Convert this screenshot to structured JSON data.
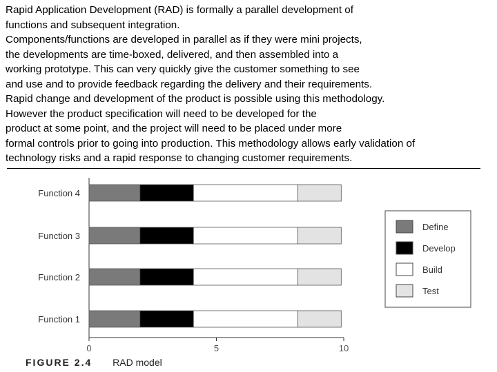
{
  "paragraph": {
    "lines": [
      "Rapid Application Development (RAD) is formally a parallel development of",
      "functions and subsequent integration.",
      "Components/functions are developed in parallel as if they were mini projects,",
      "the developments are time-boxed, delivered, and then assembled into a",
      "working prototype. This can very quickly give the customer something to see",
      "and use and to provide feedback regarding the delivery and their requirements.",
      "Rapid change and development of the product is possible using this methodology.",
      "However the product specification will need to be developed for the",
      "product at some point, and the project will need to be placed under more",
      "formal controls prior to going into production. This methodology allows early validation of",
      "technology risks and a rapid response to changing customer requirements."
    ]
  },
  "figure": {
    "number": "FIGURE 2.4",
    "title": "RAD model"
  },
  "chart_data": {
    "type": "bar",
    "orientation": "horizontal",
    "stacked": true,
    "categories": [
      "Function 4",
      "Function 3",
      "Function 2",
      "Function 1"
    ],
    "xlim": [
      0,
      10
    ],
    "xticks": [
      "0",
      "5",
      "10"
    ],
    "series": [
      {
        "name": "Define",
        "color": "#7a7a7a",
        "values": [
          2,
          2,
          2,
          2
        ]
      },
      {
        "name": "Develop",
        "color": "#000000",
        "values": [
          2.1,
          2.1,
          2.1,
          2.1
        ]
      },
      {
        "name": "Build",
        "color": "#ffffff",
        "values": [
          4.1,
          4.1,
          4.1,
          4.1
        ]
      },
      {
        "name": "Test",
        "color": "#e3e3e3",
        "values": [
          1.7,
          1.7,
          1.7,
          1.7
        ]
      }
    ],
    "legend_position": "right"
  }
}
